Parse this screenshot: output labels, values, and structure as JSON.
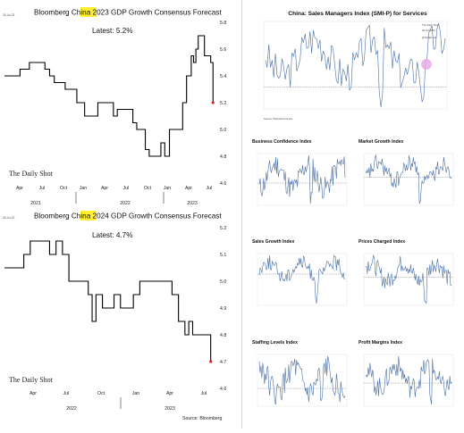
{
  "left": {
    "chart1": {
      "stamp": "26-Jul-23",
      "title_pre": "Bloomberg China ",
      "title_year": "2023",
      "title_post": " GDP Growth Consensus Forecast",
      "latest": "Latest:  5.2%",
      "brand": "The Daily Shot",
      "month_labels": [
        "Apr",
        "Jul",
        "Oct",
        "Jan",
        "Apr",
        "Jul",
        "Oct",
        "Jan",
        "Apr",
        "Jul"
      ],
      "year_labels": [
        "2021",
        "2022",
        "2023"
      ]
    },
    "chart2": {
      "stamp": "26-Jul-23",
      "title_pre": "Bloomberg China ",
      "title_year": "2024",
      "title_post": " GDP Growth Consensus Forecast",
      "latest": "Latest:  4.7%",
      "brand": "The Daily Shot",
      "month_labels": [
        "Apr",
        "Jul",
        "Oct",
        "Jan",
        "Apr",
        "Jul"
      ],
      "year_labels": [
        "2022",
        "2023"
      ]
    },
    "source": "Source: Bloomberg"
  },
  "right": {
    "big_title": "China: Sales Managers Index (SMI-P) for Services",
    "watermark": "The Daily Shot",
    "watermark_date": "25-Jul-2023",
    "watermark_handle": "@SoberLook",
    "footer": "Source: World Economics",
    "mini_titles": [
      "Business Confidence Index",
      "Market Growth Index",
      "Sales Growth Index",
      "Prices Charged Index",
      "Staffing Levels Index",
      "Profit Margins Index"
    ],
    "marker_color": "#e8a6e8",
    "line_color": "#4a6fa5"
  },
  "chart_data": [
    {
      "type": "line",
      "title": "Bloomberg China 2023 GDP Growth Consensus Forecast",
      "ylim": [
        4.6,
        5.8
      ],
      "yticks": [
        4.6,
        4.8,
        5.0,
        5.2,
        5.4,
        5.6,
        5.8
      ],
      "ytick_labels": [
        "4.6",
        "4.8",
        "5.0",
        "5.2",
        "5.4",
        "5.6",
        "5.8"
      ],
      "x": [
        0,
        2,
        3.2,
        4.5,
        5.2,
        5.8,
        6.4,
        7.2,
        7.8,
        8.4,
        9.3,
        10.3,
        11.5,
        12.0,
        13.0,
        14.0,
        14.5,
        15.5,
        16.5,
        17.0,
        17.6,
        18.1,
        18.6,
        19.4,
        20.1,
        20.6,
        20.9,
        21.2,
        21.7,
        22.2,
        22.9,
        23.4,
        24.0,
        24.3,
        24.6,
        24.9,
        25.3,
        25.7,
        26.1,
        26.5,
        26.8
      ],
      "y": [
        5.4,
        5.45,
        5.5,
        5.5,
        5.45,
        5.4,
        5.35,
        5.35,
        5.3,
        5.3,
        5.2,
        5.1,
        5.1,
        5.2,
        5.2,
        5.1,
        5.15,
        5.15,
        5.05,
        5.0,
        5.0,
        4.85,
        4.8,
        4.8,
        4.9,
        4.8,
        4.8,
        5.0,
        5.0,
        5.0,
        5.2,
        5.4,
        5.55,
        5.5,
        5.6,
        5.7,
        5.7,
        5.55,
        5.55,
        5.5,
        5.2
      ],
      "last_point": {
        "x": 26.8,
        "y": 5.2
      },
      "series_color": "#000000",
      "marker_color": "#d62728"
    },
    {
      "type": "line",
      "title": "Bloomberg China 2024 GDP Growth Consensus Forecast",
      "ylim": [
        4.6,
        5.2
      ],
      "yticks": [
        4.6,
        4.7,
        4.8,
        4.9,
        5.0,
        5.1,
        5.2
      ],
      "ytick_labels": [
        "4.6",
        "4.7",
        "4.8",
        "4.9",
        "5.0",
        "5.1",
        "5.2"
      ],
      "x": [
        0,
        1,
        1.5,
        2,
        3,
        3.5,
        4,
        4.5,
        5,
        5.5,
        6,
        6.5,
        6.8,
        7.1,
        7.6,
        8,
        8.5,
        9,
        9.5,
        10,
        10.5,
        11,
        11.5,
        12,
        12.5,
        13,
        13.5,
        14,
        14.3,
        14.6,
        15,
        15.5,
        16
      ],
      "y": [
        5.05,
        5.05,
        5.1,
        5.15,
        5.15,
        5.1,
        5.15,
        5.1,
        5.0,
        5.0,
        5.0,
        4.95,
        4.85,
        4.95,
        4.9,
        4.9,
        4.95,
        4.9,
        4.9,
        4.95,
        5.0,
        5.0,
        5.0,
        5.0,
        5.0,
        4.95,
        4.85,
        4.8,
        4.85,
        4.8,
        4.8,
        4.8,
        4.7
      ],
      "last_point": {
        "x": 16,
        "y": 4.7
      },
      "series_color": "#000000",
      "marker_color": "#d62728"
    }
  ]
}
